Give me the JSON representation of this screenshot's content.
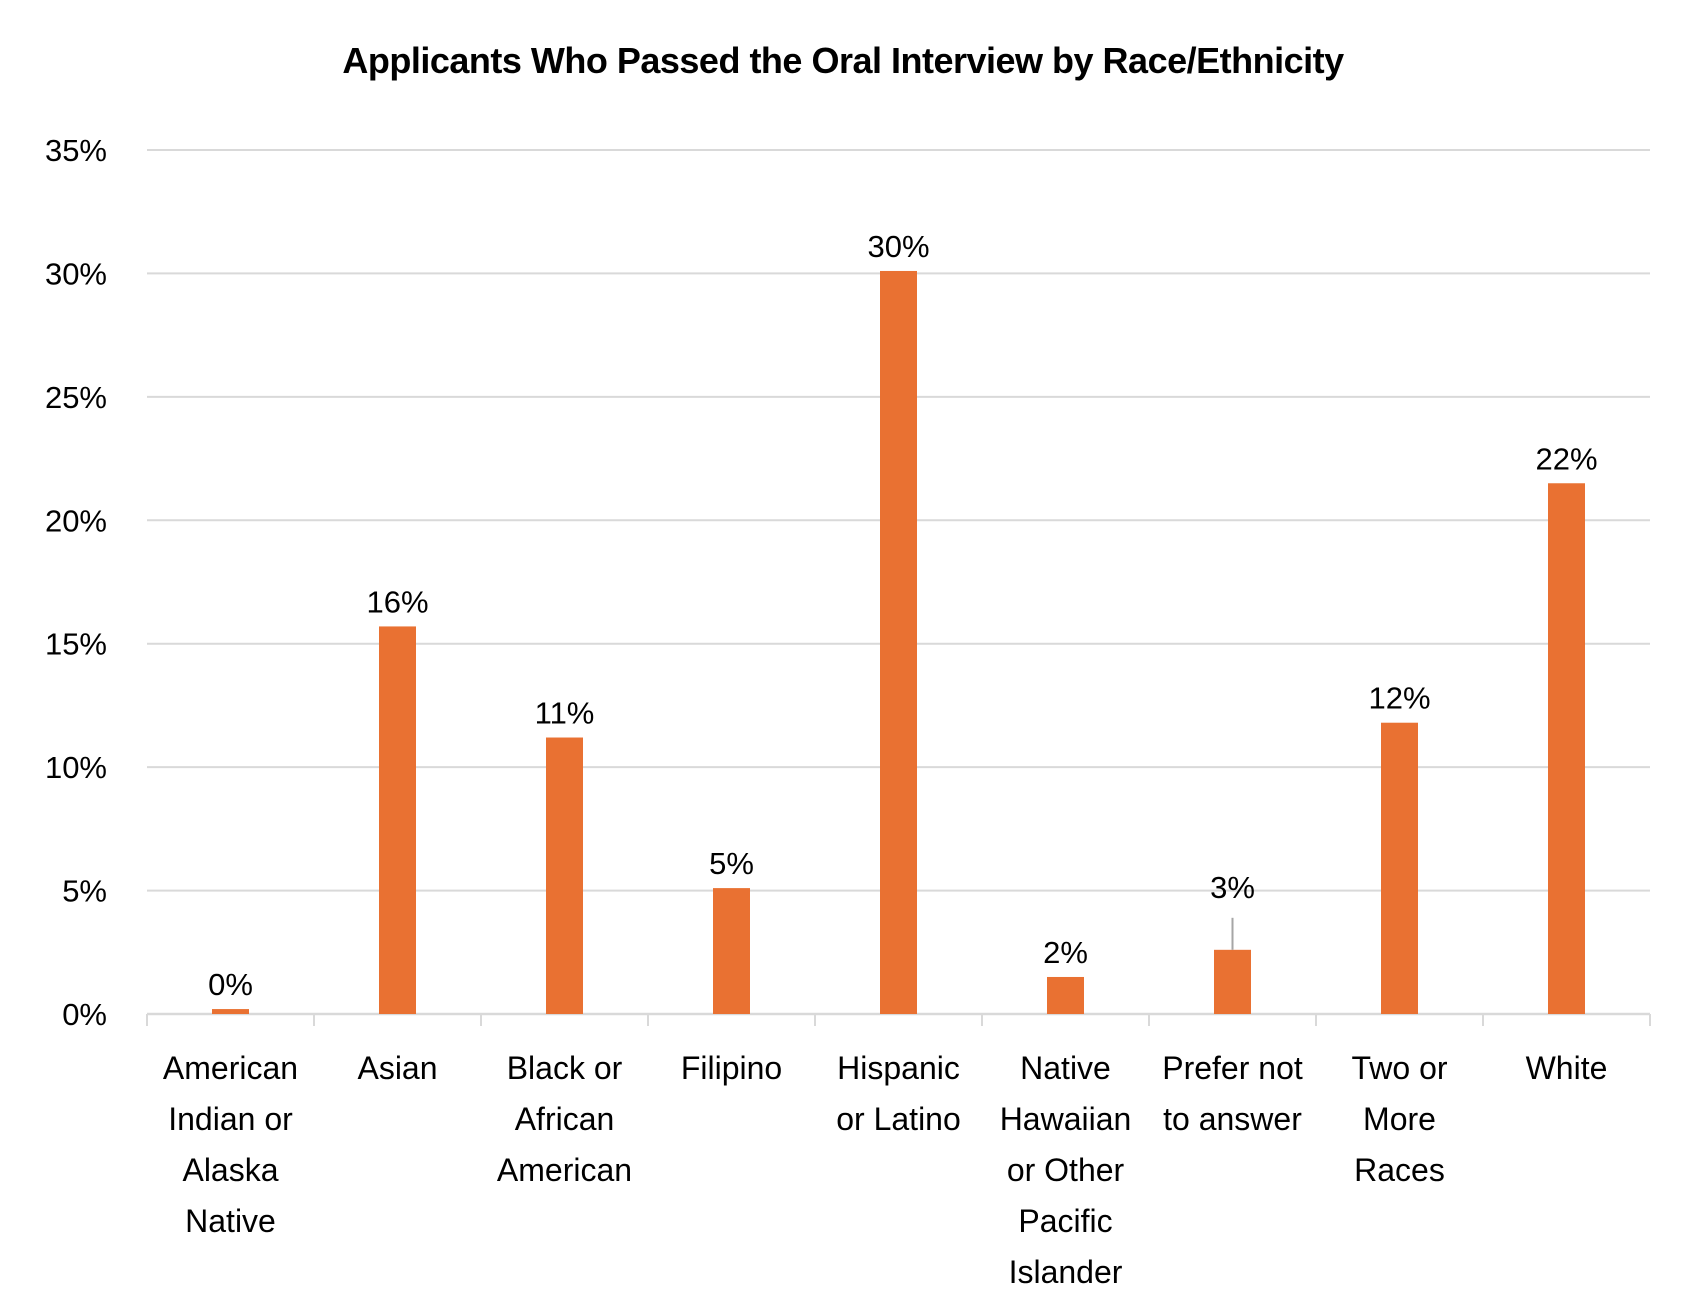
{
  "chart_data": {
    "type": "bar",
    "title": "Applicants Who Passed the Oral Interview by Race/Ethnicity",
    "xlabel": "",
    "ylabel": "",
    "ylim": [
      0,
      35
    ],
    "yticks": [
      0,
      5,
      10,
      15,
      20,
      25,
      30,
      35
    ],
    "ytick_labels": [
      "0%",
      "5%",
      "10%",
      "15%",
      "20%",
      "25%",
      "30%",
      "35%"
    ],
    "grid": true,
    "legend": "none",
    "bar_color": "#E97132",
    "categories": [
      [
        "American",
        "Indian or",
        "Alaska",
        "Native"
      ],
      [
        "Asian"
      ],
      [
        "Black or",
        "African",
        "American"
      ],
      [
        "Filipino"
      ],
      [
        "Hispanic",
        "or Latino"
      ],
      [
        "Native",
        "Hawaiian",
        "or Other",
        "Pacific",
        "Islander"
      ],
      [
        "Prefer not",
        "to answer"
      ],
      [
        "Two or",
        "More",
        "Races"
      ],
      [
        "White"
      ]
    ],
    "values": [
      0.2,
      15.7,
      11.2,
      5.1,
      30.1,
      1.5,
      2.6,
      11.8,
      21.5
    ],
    "data_labels": [
      "0%",
      "16%",
      "11%",
      "5%",
      "30%",
      "2%",
      "3%",
      "12%",
      "22%"
    ]
  }
}
